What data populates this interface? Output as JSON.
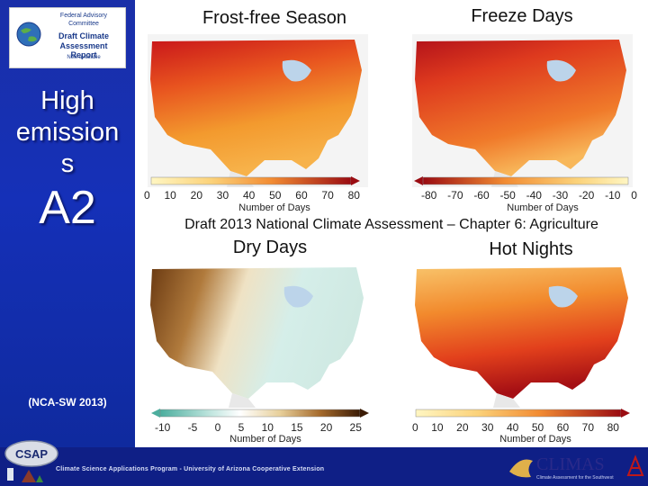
{
  "sidebar": {
    "logo": {
      "line1": "Federal Advisory",
      "line2": "Committee",
      "line3": "Draft Climate",
      "line4": "Assessment Report",
      "line5": "Now available"
    },
    "title": [
      "High",
      "emission",
      "s"
    ],
    "scenario": "A2",
    "source_note": "(NCA-SW 2013)"
  },
  "caption": "Draft 2013 National Climate Assessment – Chapter 6: Agriculture",
  "panels": [
    {
      "title": "Frost-free Season",
      "legend_ticks": [
        "0",
        "10",
        "20",
        "30",
        "40",
        "50",
        "60",
        "70",
        "80"
      ],
      "legend_label": "Number of Days"
    },
    {
      "title": "Freeze Days",
      "legend_ticks": [
        "-80",
        "-70",
        "-60",
        "-50",
        "-40",
        "-30",
        "-20",
        "-10",
        "0"
      ],
      "legend_label": "Number of Days"
    },
    {
      "title": "Dry Days",
      "legend_ticks": [
        "-10",
        "-5",
        "0",
        "5",
        "10",
        "15",
        "20",
        "25"
      ],
      "legend_label": "Number of Days"
    },
    {
      "title": "Hot Nights",
      "legend_ticks": [
        "0",
        "10",
        "20",
        "30",
        "40",
        "50",
        "60",
        "70",
        "80"
      ],
      "legend_label": "Number of Days"
    }
  ],
  "footer": {
    "text": "Climate Science Applications Program - University of Arizona Cooperative Extension",
    "csap_logo": "CSAP",
    "climas_logo": "CLIMAS",
    "climas_sub": "Climate Assessment for the Southwest"
  },
  "colors": {
    "sidebar_blue": "#1530b8",
    "footer_blue": "#0f1f86",
    "warm_low": "#fff3b0",
    "warm_high": "#b40f10",
    "dry_low": "#5fbfb0",
    "dry_high": "#3a1a05"
  }
}
